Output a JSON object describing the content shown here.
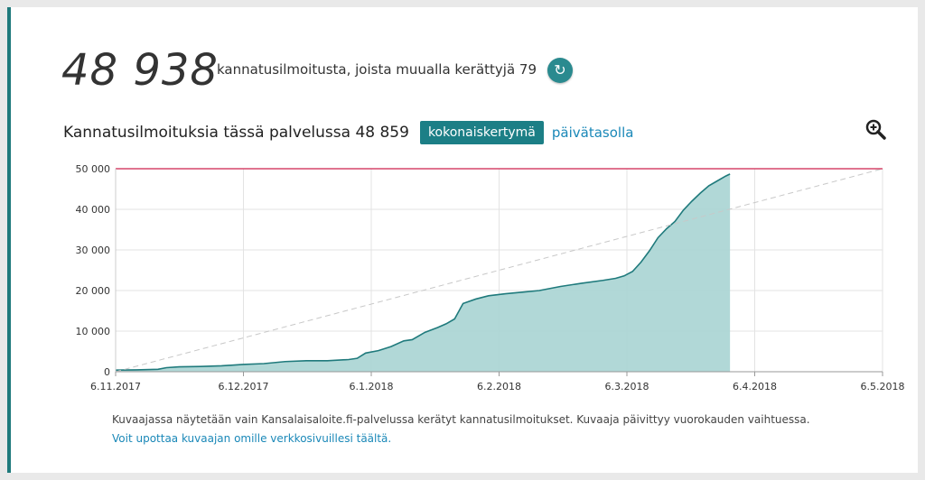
{
  "header": {
    "total_count": "48 938",
    "count_description": "kannatusilmoitusta, joista muualla kerättyjä 79",
    "refresh_icon": "refresh-icon"
  },
  "service": {
    "title": "Kannatusilmoituksia tässä palvelussa 48 859",
    "cumulative_button": "kokonaiskertymä",
    "daily_link": "päivätasolla",
    "zoom_icon": "zoom-in-icon"
  },
  "footer": {
    "note": "Kuvaajassa näytetään vain Kansalaisaloite.fi-palvelussa kerätyt kannatusilmoitukset. Kuvaaja päivittyy vuorokauden vaihtuessa.",
    "embed_link": "Voit upottaa kuvaajan omille verkkosivuillesi täältä."
  },
  "colors": {
    "accent": "#1c7f86",
    "area_fill": "#a9d4d3",
    "line": "#1f7a7c",
    "target_line": "#d6476a",
    "link": "#1a88b8"
  },
  "chart_data": {
    "type": "area",
    "x_ticks": [
      "6.11.2017",
      "6.12.2017",
      "6.1.2018",
      "6.2.2018",
      "6.3.2018",
      "6.4.2018",
      "6.5.2018"
    ],
    "y_ticks": [
      "0",
      "10 000",
      "20 000",
      "30 000",
      "40 000",
      "50 000"
    ],
    "ylim": [
      0,
      50000
    ],
    "xlim_days": [
      0,
      181
    ],
    "target_value": 50000,
    "grid": true,
    "series": [
      {
        "values": [
          [
            0,
            400
          ],
          [
            5,
            450
          ],
          [
            10,
            600
          ],
          [
            12,
            1000
          ],
          [
            15,
            1200
          ],
          [
            20,
            1300
          ],
          [
            25,
            1450
          ],
          [
            30,
            1800
          ],
          [
            35,
            2000
          ],
          [
            40,
            2500
          ],
          [
            45,
            2700
          ],
          [
            50,
            2700
          ],
          [
            55,
            3000
          ],
          [
            57,
            3300
          ],
          [
            59,
            4600
          ],
          [
            62,
            5200
          ],
          [
            65,
            6200
          ],
          [
            68,
            7600
          ],
          [
            70,
            7900
          ],
          [
            73,
            9700
          ],
          [
            76,
            10900
          ],
          [
            78,
            11800
          ],
          [
            80,
            13000
          ],
          [
            82,
            16800
          ],
          [
            85,
            17900
          ],
          [
            88,
            18700
          ],
          [
            92,
            19200
          ],
          [
            96,
            19600
          ],
          [
            100,
            20000
          ],
          [
            105,
            21000
          ],
          [
            110,
            21800
          ],
          [
            115,
            22500
          ],
          [
            118,
            23000
          ],
          [
            120,
            23600
          ],
          [
            122,
            24700
          ],
          [
            124,
            27000
          ],
          [
            126,
            29800
          ],
          [
            128,
            33000
          ],
          [
            130,
            35200
          ],
          [
            132,
            37000
          ],
          [
            134,
            39800
          ],
          [
            136,
            42000
          ],
          [
            138,
            44000
          ],
          [
            140,
            45800
          ],
          [
            142,
            47000
          ],
          [
            144,
            48200
          ],
          [
            145,
            48700
          ]
        ]
      }
    ],
    "reference_line": {
      "from": [
        0,
        0
      ],
      "to": [
        181,
        50000
      ],
      "style": "dashed"
    }
  }
}
